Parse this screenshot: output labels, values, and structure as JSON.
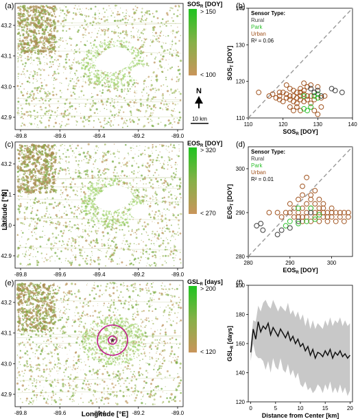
{
  "figure": {
    "shared_xlabel": "Longitude [°E]",
    "shared_ylabel": "Latitude [°N]",
    "map_x_ticks": [
      "-89.8",
      "-89.6",
      "-89.4",
      "-89.2",
      "-89.0"
    ],
    "map_y_ticks": [
      "43.2",
      "43.1",
      "43.0",
      "42.9"
    ],
    "scale_label": "10 km",
    "north_label": "N"
  },
  "colors": {
    "rural": "#3a3a3a",
    "park": "#2bbf2b",
    "urban": "#a0521d",
    "colorbar_green": "#22c022",
    "colorbar_brown": "#c8955a",
    "loop": "#c01d8a",
    "band": "#c8c8c8",
    "line": "#111111"
  },
  "chart_data": [
    {
      "panel": "(a)",
      "type": "heatmap",
      "colorbar": {
        "title": "SOS",
        "subscript": "R",
        "unit": "[DOY]",
        "top": "> 150",
        "bottom": "< 100"
      }
    },
    {
      "panel": "(c)",
      "type": "heatmap",
      "colorbar": {
        "title": "EOS",
        "subscript": "R",
        "unit": "[DOY]",
        "top": "> 320",
        "bottom": "< 270"
      }
    },
    {
      "panel": "(e)",
      "type": "heatmap",
      "colorbar": {
        "title": "GSL",
        "subscript": "R",
        "unit": "[days]",
        "top": "> 200",
        "bottom": "< 120"
      }
    },
    {
      "panel": "(b)",
      "type": "scatter",
      "xlabel": "SOS",
      "xsub": "R",
      "xunit": "[DOY]",
      "ylabel": "SOS",
      "ysub": "T",
      "yunit": "[DOY]",
      "xlim": [
        110,
        140
      ],
      "ylim": [
        110,
        140
      ],
      "xticks": [
        110,
        120,
        130,
        140
      ],
      "yticks": [
        110,
        120,
        130,
        140
      ],
      "legend_title": "Sensor Type:",
      "r2": "R² = 0.06",
      "series": [
        {
          "name": "Rural",
          "points": [
            [
              128,
              118
            ],
            [
              129,
              117
            ],
            [
              130,
              117.5
            ],
            [
              131,
              116
            ],
            [
              134,
              118
            ],
            [
              135,
              117.5
            ],
            [
              137,
              117
            ]
          ]
        },
        {
          "name": "Park",
          "points": [
            [
              126,
              116
            ],
            [
              126,
              112.5
            ],
            [
              128,
              113
            ],
            [
              129,
              116
            ],
            [
              130,
              115.5
            ],
            [
              130,
              116.5
            ],
            [
              127,
              112
            ]
          ]
        },
        {
          "name": "Urban",
          "points": [
            [
              113,
              117
            ],
            [
              116,
              116
            ],
            [
              117,
              116.5
            ],
            [
              118,
              115.5
            ],
            [
              119,
              116
            ],
            [
              119,
              115
            ],
            [
              120,
              117
            ],
            [
              120,
              114.5
            ],
            [
              121,
              115.5
            ],
            [
              121,
              116.5
            ],
            [
              122,
              118
            ],
            [
              122,
              115
            ],
            [
              122,
              113
            ],
            [
              123,
              116
            ],
            [
              123,
              114.5
            ],
            [
              123,
              117.5
            ],
            [
              124,
              115.5
            ],
            [
              124,
              117
            ],
            [
              124,
              114
            ],
            [
              125,
              116
            ],
            [
              125,
              118
            ],
            [
              125,
              115
            ],
            [
              125,
              112
            ],
            [
              126,
              116.5
            ],
            [
              126,
              114.5
            ],
            [
              126,
              117.5
            ],
            [
              127,
              116
            ],
            [
              127,
              115
            ],
            [
              127,
              118.5
            ],
            [
              128,
              116
            ],
            [
              128,
              114
            ],
            [
              128,
              119
            ],
            [
              129,
              115
            ],
            [
              129,
              117
            ],
            [
              129,
              112
            ],
            [
              130,
              118.5
            ],
            [
              130,
              111
            ],
            [
              131,
              115.5
            ],
            [
              131,
              113
            ],
            [
              132,
              116
            ],
            [
              124,
              113
            ],
            [
              121,
              119
            ],
            [
              126,
              119.5
            ],
            [
              122,
              116
            ],
            [
              119,
              117
            ],
            [
              123,
              112
            ],
            [
              125,
              117
            ]
          ]
        }
      ]
    },
    {
      "panel": "(d)",
      "type": "scatter",
      "xlabel": "EOS",
      "xsub": "R",
      "xunit": "[DOY]",
      "ylabel": "EOS",
      "ysub": "T",
      "yunit": "[DOY]",
      "xlim": [
        280,
        305
      ],
      "ylim": [
        280,
        305
      ],
      "xticks": [
        280,
        290,
        300
      ],
      "yticks": [
        280,
        290,
        300
      ],
      "legend_title": "Sensor Type:",
      "r2": "R² = 0.01",
      "series": [
        {
          "name": "Rural",
          "points": [
            [
              282,
              287
            ],
            [
              283,
              287.5
            ],
            [
              283.5,
              286
            ],
            [
              287,
              285
            ],
            [
              288,
              286
            ],
            [
              290,
              286.5
            ],
            [
              292,
              288
            ],
            [
              295,
              290
            ]
          ]
        },
        {
          "name": "Park",
          "points": [
            [
              289,
              287
            ],
            [
              290,
              288
            ],
            [
              292,
              287.5
            ],
            [
              294,
              288
            ],
            [
              295,
              291
            ],
            [
              296,
              288.5
            ],
            [
              297,
              289.5
            ],
            [
              292,
              291
            ]
          ]
        },
        {
          "name": "Urban",
          "points": [
            [
              285,
              290
            ],
            [
              287,
              290
            ],
            [
              288,
              289
            ],
            [
              289,
              290
            ],
            [
              290,
              292
            ],
            [
              290,
              290
            ],
            [
              291,
              291
            ],
            [
              291,
              289
            ],
            [
              292,
              293
            ],
            [
              292,
              290
            ],
            [
              292,
              289
            ],
            [
              293,
              294
            ],
            [
              293,
              291
            ],
            [
              293,
              288
            ],
            [
              293,
              296
            ],
            [
              294,
              292
            ],
            [
              294,
              290
            ],
            [
              294,
              289
            ],
            [
              294,
              298
            ],
            [
              295,
              293
            ],
            [
              295,
              291
            ],
            [
              295,
              288
            ],
            [
              295,
              294
            ],
            [
              296,
              292
            ],
            [
              296,
              290
            ],
            [
              296,
              289
            ],
            [
              296,
              295
            ],
            [
              297,
              291
            ],
            [
              297,
              290
            ],
            [
              297,
              288
            ],
            [
              298,
              292
            ],
            [
              298,
              290
            ],
            [
              298,
              289
            ],
            [
              298,
              291
            ],
            [
              299,
              290
            ],
            [
              299,
              289
            ],
            [
              299,
              288
            ],
            [
              300,
              290
            ],
            [
              300,
              291
            ],
            [
              300,
              289
            ],
            [
              301,
              290
            ],
            [
              301,
              288
            ],
            [
              302,
              290
            ],
            [
              302,
              289
            ],
            [
              303,
              290
            ],
            [
              303,
              288
            ],
            [
              304,
              289
            ],
            [
              304,
              290
            ],
            [
              293,
              289
            ],
            [
              297,
              293
            ]
          ]
        }
      ]
    },
    {
      "panel": "(f)",
      "type": "line",
      "xlabel": "Distance from Center [km]",
      "ylabel": "GSL",
      "ysub": "R",
      "yunit": "[days]",
      "xlim": [
        -0.5,
        20.5
      ],
      "ylim": [
        120,
        200
      ],
      "xticks": [
        0,
        5,
        10,
        15,
        20
      ],
      "yticks": [
        120,
        140,
        160,
        180,
        200
      ],
      "x": [
        0,
        0.5,
        1,
        1.5,
        2,
        2.5,
        3,
        3.5,
        4,
        4.5,
        5,
        5.5,
        6,
        6.5,
        7,
        7.5,
        8,
        8.5,
        9,
        9.5,
        10,
        10.5,
        11,
        11.5,
        12,
        12.5,
        13,
        13.5,
        14,
        14.5,
        15,
        15.5,
        16,
        16.5,
        17,
        17.5,
        18,
        18.5,
        19,
        19.5,
        20
      ],
      "mean": [
        154,
        170,
        163,
        175,
        168,
        172,
        170,
        174,
        166,
        171,
        168,
        165,
        170,
        167,
        164,
        168,
        162,
        165,
        160,
        163,
        158,
        160,
        155,
        158,
        152,
        156,
        150,
        154,
        153,
        151,
        155,
        152,
        156,
        150,
        154,
        152,
        155,
        151,
        153,
        150,
        152
      ],
      "upper": [
        160,
        176,
        175,
        186,
        182,
        188,
        190,
        186,
        184,
        190,
        186,
        182,
        186,
        184,
        182,
        188,
        180,
        183,
        178,
        182,
        176,
        180,
        172,
        178,
        170,
        176,
        170,
        174,
        172,
        170,
        176,
        172,
        178,
        172,
        176,
        174,
        178,
        172,
        176,
        172,
        174
      ],
      "lower": [
        148,
        160,
        152,
        150,
        150,
        148,
        142,
        148,
        140,
        150,
        144,
        142,
        150,
        142,
        140,
        146,
        138,
        142,
        136,
        140,
        132,
        130,
        134,
        128,
        130,
        126,
        128,
        132,
        130,
        126,
        132,
        128,
        134,
        126,
        130,
        126,
        132,
        126,
        130,
        124,
        128
      ]
    }
  ]
}
